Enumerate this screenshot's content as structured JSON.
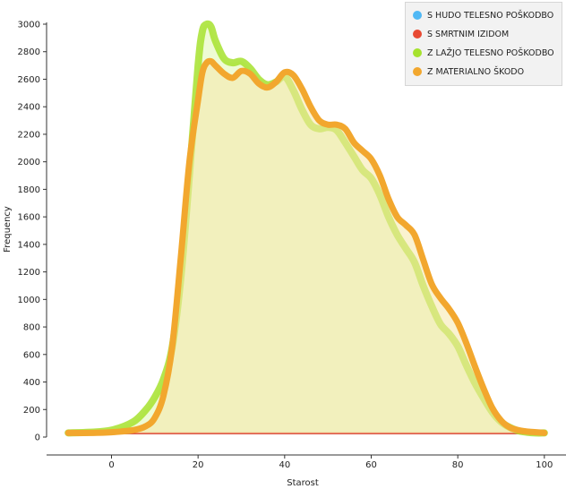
{
  "chart_data": {
    "type": "area",
    "xlabel": "Starost",
    "ylabel": "Frequency",
    "xlim": [
      -15,
      105
    ],
    "ylim": [
      0,
      3000
    ],
    "xticks": [
      0,
      20,
      40,
      60,
      80,
      100
    ],
    "yticks": [
      0,
      200,
      400,
      600,
      800,
      1000,
      1200,
      1400,
      1600,
      1800,
      2000,
      2200,
      2400,
      2600,
      2800,
      3000
    ],
    "legend_position": "top-right",
    "grid": false,
    "series": [
      {
        "name": "S HUDO TELESNO POŠKODBO",
        "color": "#4fb8f5",
        "x": [
          -10,
          100
        ],
        "y": [
          30,
          30
        ]
      },
      {
        "name": "S SMRTNIM IZIDOM",
        "color": "#e84a33",
        "x": [
          -10,
          100
        ],
        "y": [
          30,
          30
        ]
      },
      {
        "name": "Z LAŽJO TELESNO POŠKODBO",
        "color": "#a6e22e",
        "x": [
          -10,
          -5,
          0,
          5,
          8,
          10,
          12,
          14,
          16,
          18,
          20,
          21,
          22,
          23,
          24,
          26,
          28,
          30,
          32,
          34,
          36,
          38,
          40,
          42,
          44,
          46,
          48,
          50,
          52,
          54,
          56,
          58,
          60,
          62,
          64,
          66,
          68,
          70,
          72,
          74,
          76,
          78,
          80,
          82,
          84,
          86,
          88,
          90,
          92,
          94,
          96,
          98,
          100
        ],
        "y": [
          30,
          35,
          50,
          110,
          200,
          290,
          420,
          650,
          1150,
          1900,
          2700,
          2950,
          3000,
          2980,
          2880,
          2750,
          2720,
          2730,
          2680,
          2600,
          2560,
          2580,
          2620,
          2520,
          2380,
          2270,
          2240,
          2250,
          2230,
          2140,
          2040,
          1940,
          1880,
          1760,
          1600,
          1470,
          1370,
          1270,
          1100,
          950,
          820,
          750,
          660,
          520,
          390,
          280,
          180,
          110,
          70,
          45,
          35,
          30,
          30
        ]
      },
      {
        "name": "Z MATERIALNO ŠKODO",
        "color": "#f2a72e",
        "x": [
          -10,
          -5,
          0,
          5,
          8,
          10,
          12,
          14,
          16,
          18,
          20,
          21,
          22,
          23,
          24,
          26,
          28,
          30,
          32,
          34,
          36,
          38,
          40,
          42,
          44,
          46,
          48,
          50,
          52,
          54,
          56,
          58,
          60,
          62,
          64,
          66,
          68,
          70,
          72,
          74,
          76,
          78,
          80,
          82,
          84,
          86,
          88,
          90,
          92,
          94,
          96,
          98,
          100
        ],
        "y": [
          30,
          30,
          35,
          50,
          80,
          140,
          300,
          650,
          1300,
          2000,
          2450,
          2650,
          2720,
          2730,
          2700,
          2640,
          2610,
          2660,
          2640,
          2570,
          2540,
          2580,
          2650,
          2630,
          2530,
          2400,
          2300,
          2270,
          2270,
          2240,
          2140,
          2080,
          2020,
          1900,
          1730,
          1600,
          1540,
          1470,
          1290,
          1110,
          1010,
          930,
          830,
          680,
          510,
          350,
          210,
          120,
          70,
          50,
          40,
          35,
          30
        ]
      }
    ]
  }
}
